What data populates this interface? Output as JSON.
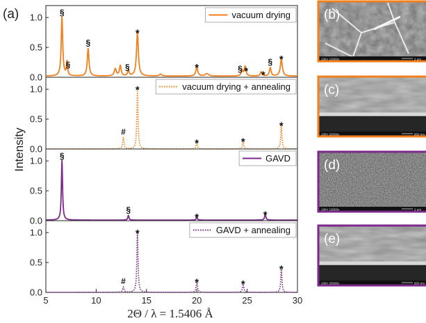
{
  "figure_label": "(a)",
  "chart_data": {
    "type": "line",
    "xlabel": "2Θ / λ = 1.5406 Å",
    "ylabel": "Intensity",
    "xlim": [
      5,
      30
    ],
    "xticks": [
      5,
      10,
      15,
      20,
      25,
      30
    ],
    "ylim": [
      0,
      1.2
    ],
    "yticks": [
      "0.0",
      "0.5",
      "1.0"
    ],
    "panels": [
      {
        "name": "vacuum drying",
        "style": "solid",
        "color": "#f07f1c",
        "baseline": 0.02,
        "peaks": [
          [
            6.6,
            0.98,
            0.09
          ],
          [
            7.1,
            0.23,
            0.07
          ],
          [
            9.2,
            0.46,
            0.1
          ],
          [
            11.9,
            0.12,
            0.12
          ],
          [
            12.4,
            0.17,
            0.1
          ],
          [
            13.2,
            0.1,
            0.08
          ],
          [
            14.1,
            0.72,
            0.11
          ],
          [
            16.4,
            0.03,
            0.15
          ],
          [
            20.0,
            0.14,
            0.12
          ],
          [
            21.0,
            0.04,
            0.2
          ],
          [
            24.5,
            0.09,
            0.1
          ],
          [
            24.8,
            0.16,
            0.1
          ],
          [
            26.4,
            0.07,
            0.1
          ],
          [
            27.3,
            0.14,
            0.1
          ],
          [
            28.4,
            0.28,
            0.12
          ]
        ],
        "labels": [
          [
            6.6,
            "§"
          ],
          [
            7.2,
            "§"
          ],
          [
            9.2,
            "§"
          ],
          [
            13.1,
            "§"
          ],
          [
            14.1,
            "*"
          ],
          [
            20.0,
            "*"
          ],
          [
            24.3,
            "§"
          ],
          [
            24.9,
            "*"
          ],
          [
            26.6,
            "*"
          ],
          [
            27.3,
            "§"
          ],
          [
            28.4,
            "*"
          ]
        ]
      },
      {
        "name": "vacuum drying + annealing",
        "style": "dotted",
        "color": "#f07f1c",
        "baseline": 0.0,
        "peaks": [
          [
            12.7,
            0.19,
            0.08
          ],
          [
            14.1,
            0.99,
            0.07
          ],
          [
            20.0,
            0.1,
            0.08
          ],
          [
            24.6,
            0.12,
            0.08
          ],
          [
            28.4,
            0.39,
            0.07
          ]
        ],
        "labels": [
          [
            12.7,
            "#"
          ],
          [
            14.1,
            "*"
          ],
          [
            20.0,
            "*"
          ],
          [
            24.6,
            "*"
          ],
          [
            28.4,
            "*"
          ]
        ]
      },
      {
        "name": "GAVD",
        "style": "solid",
        "color": "#7b2a8b",
        "baseline": 0.01,
        "peaks": [
          [
            6.6,
            1.0,
            0.07
          ],
          [
            13.2,
            0.08,
            0.07
          ],
          [
            20.0,
            0.05,
            0.07
          ],
          [
            26.8,
            0.09,
            0.08
          ]
        ],
        "labels": [
          [
            6.6,
            "§"
          ],
          [
            13.2,
            "§"
          ],
          [
            20.0,
            "*"
          ],
          [
            26.8,
            "*"
          ]
        ]
      },
      {
        "name": "GAVD + annealing",
        "style": "dotted",
        "color": "#7b2a8b",
        "baseline": 0.0,
        "peaks": [
          [
            12.7,
            0.09,
            0.08
          ],
          [
            14.1,
            0.99,
            0.07
          ],
          [
            20.0,
            0.17,
            0.08
          ],
          [
            24.6,
            0.14,
            0.08
          ],
          [
            28.4,
            0.39,
            0.07
          ]
        ],
        "labels": [
          [
            12.7,
            "#"
          ],
          [
            14.1,
            "*"
          ],
          [
            20.0,
            "*"
          ],
          [
            24.6,
            "*"
          ],
          [
            28.4,
            "*"
          ]
        ]
      }
    ]
  },
  "images": [
    {
      "label": "(b)",
      "frame_color": "#f07f1c",
      "texture": "grains",
      "info": "10kV  10000x",
      "scale": "2 µm"
    },
    {
      "label": "(c)",
      "frame_color": "#f07f1c",
      "texture": "cross-section",
      "info": "10kV  20000x",
      "scale": "800 nm"
    },
    {
      "label": "(d)",
      "frame_color": "#7b2a8b",
      "texture": "fine-grains",
      "info": "10kV  10000x",
      "scale": "2 µm"
    },
    {
      "label": "(e)",
      "frame_color": "#7b2a8b",
      "texture": "cross-section",
      "info": "10kV  20000x",
      "scale": "800 nm"
    }
  ]
}
